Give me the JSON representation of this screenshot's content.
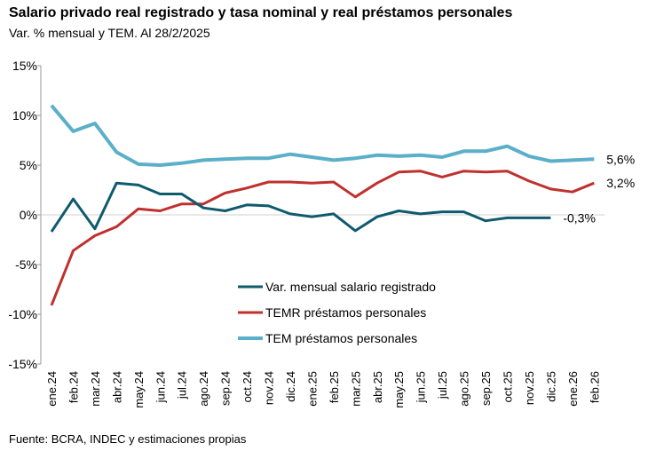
{
  "title": "Salario privado real registrado y tasa nominal y real préstamos personales",
  "subtitle": "Var. % mensual y TEM. Al 28/2/2025",
  "source": "Fuente: BCRA, INDEC y estimaciones propias",
  "chart_data": {
    "type": "line",
    "categories": [
      "ene.24",
      "feb.24",
      "mar.24",
      "abr.24",
      "may.24",
      "jun.24",
      "jul.24",
      "ago.24",
      "sep.24",
      "oct.24",
      "nov.24",
      "dic.24",
      "ene.25",
      "feb.25",
      "mar.25",
      "abr.25",
      "may.25",
      "jun.25",
      "jul.25",
      "ago.25",
      "sep.25",
      "oct.25",
      "nov.25",
      "dic.25",
      "ene.26",
      "feb.26"
    ],
    "ylim": [
      -15,
      15
    ],
    "yticks": [
      15,
      10,
      5,
      0,
      -5,
      -10,
      -15
    ],
    "ytick_labels": [
      "15%",
      "10%",
      "5%",
      "0%",
      "-5%",
      "-10%",
      "-15%"
    ],
    "grid": "zero line only",
    "legend_position": "bottom-center inside",
    "series": [
      {
        "name": "Var. mensual salario registrado",
        "color": "#0E5A6E",
        "values": [
          -1.7,
          1.6,
          -1.4,
          3.2,
          3.0,
          2.1,
          2.1,
          0.7,
          0.4,
          1.0,
          0.9,
          0.1,
          -0.2,
          0.1,
          -1.6,
          -0.2,
          0.4,
          0.1,
          0.3,
          0.3,
          -0.6,
          -0.3,
          -0.3,
          -0.3,
          null,
          null
        ],
        "end_label": "-0,3%"
      },
      {
        "name": "TEMR préstamos personales",
        "color": "#C0302E",
        "values": [
          -9.1,
          -3.6,
          -2.1,
          -1.2,
          0.6,
          0.4,
          1.1,
          1.1,
          2.2,
          2.7,
          3.3,
          3.3,
          3.2,
          3.3,
          1.8,
          3.2,
          4.3,
          4.4,
          3.8,
          4.4,
          4.3,
          4.4,
          3.4,
          2.6,
          2.3,
          3.2
        ],
        "end_label": "3,2%"
      },
      {
        "name": "TEM préstamos personales",
        "color": "#5BAFC8",
        "values": [
          11.0,
          8.4,
          9.2,
          6.3,
          5.1,
          5.0,
          5.2,
          5.5,
          5.6,
          5.7,
          5.7,
          6.1,
          5.8,
          5.5,
          5.7,
          6.0,
          5.9,
          6.0,
          5.8,
          6.4,
          6.4,
          6.9,
          5.9,
          5.4,
          5.5,
          5.6
        ],
        "end_label": "5,6%"
      }
    ]
  }
}
